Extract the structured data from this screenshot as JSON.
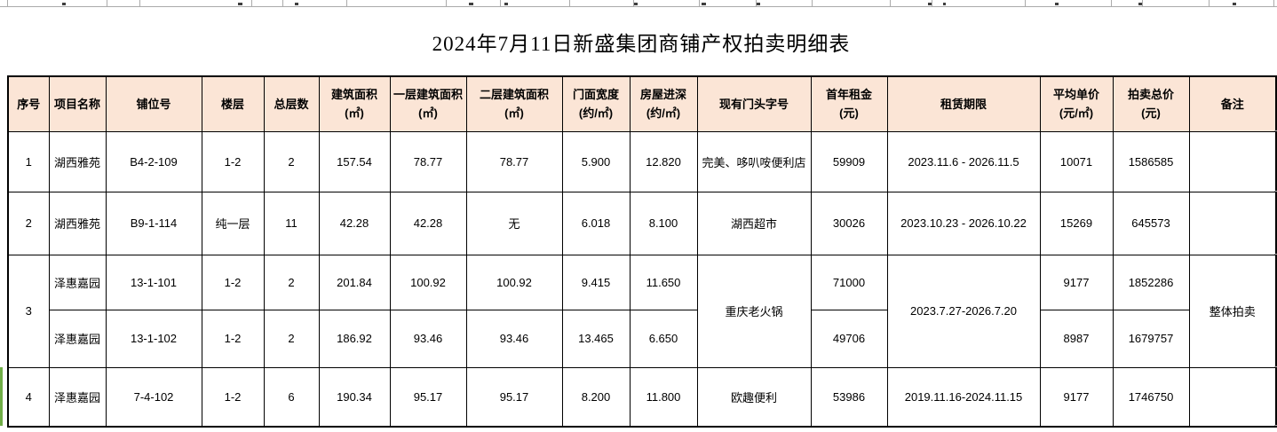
{
  "title": "2024年7月11日新盛集团商铺产权拍卖明细表",
  "colors": {
    "header_bg": "#FBE5D6",
    "border": "#000000",
    "grid_gray": "#ABABAB",
    "green_bar": "#70AD47"
  },
  "table": {
    "columns": [
      {
        "l1": "序号",
        "l2": ""
      },
      {
        "l1": "项目名称",
        "l2": ""
      },
      {
        "l1": "铺位号",
        "l2": ""
      },
      {
        "l1": "楼层",
        "l2": ""
      },
      {
        "l1": "总层数",
        "l2": ""
      },
      {
        "l1": "建筑面积",
        "l2": "(㎡)"
      },
      {
        "l1": "一层建筑面积",
        "l2": "(㎡)"
      },
      {
        "l1": "二层建筑面积",
        "l2": "(㎡)"
      },
      {
        "l1": "门面宽度",
        "l2": "(约/㎡)"
      },
      {
        "l1": "房屋进深",
        "l2": "(约/㎡)"
      },
      {
        "l1": "现有门头字号",
        "l2": ""
      },
      {
        "l1": "首年租金",
        "l2": "(元)"
      },
      {
        "l1": "租赁期限",
        "l2": ""
      },
      {
        "l1": "平均单价",
        "l2": "(元/㎡)"
      },
      {
        "l1": "拍卖总价",
        "l2": "(元)"
      },
      {
        "l1": "备注",
        "l2": ""
      }
    ],
    "rows": [
      {
        "no": "1",
        "project": "湖西雅苑",
        "unit": "B4-2-109",
        "floor": "1-2",
        "floors_total": "2",
        "area": "157.54",
        "area_f1": "78.77",
        "area_f2": "78.77",
        "width": "5.900",
        "depth": "12.820",
        "tenant": "完美、哆叭咹便利店",
        "rent": "59909",
        "term": "2023.11.6 - 2026.11.5",
        "avg": "10071",
        "total": "1586585",
        "note": ""
      },
      {
        "no": "2",
        "project": "湖西雅苑",
        "unit": "B9-1-114",
        "floor": "纯一层",
        "floors_total": "11",
        "area": "42.28",
        "area_f1": "42.28",
        "area_f2": "无",
        "width": "6.018",
        "depth": "8.100",
        "tenant": "湖西超市",
        "rent": "30026",
        "term": "2023.10.23 - 2026.10.22",
        "avg": "15269",
        "total": "645573",
        "note": ""
      },
      {
        "no": "3",
        "project": "泽惠嘉园",
        "unit": "13-1-101",
        "floor": "1-2",
        "floors_total": "2",
        "area": "201.84",
        "area_f1": "100.92",
        "area_f2": "100.92",
        "width": "9.415",
        "depth": "11.650",
        "tenant": "重庆老火锅",
        "rent": "71000",
        "term": "2023.7.27-2026.7.20",
        "avg": "9177",
        "total": "1852286",
        "note": "整体拍卖"
      },
      {
        "project": "泽惠嘉园",
        "unit": "13-1-102",
        "floor": "1-2",
        "floors_total": "2",
        "area": "186.92",
        "area_f1": "93.46",
        "area_f2": "93.46",
        "width": "13.465",
        "depth": "6.650",
        "rent": "49706",
        "avg": "8987",
        "total": "1679757"
      },
      {
        "no": "4",
        "project": "泽惠嘉园",
        "unit": "7-4-102",
        "floor": "1-2",
        "floors_total": "6",
        "area": "190.34",
        "area_f1": "95.17",
        "area_f2": "95.17",
        "width": "8.200",
        "depth": "11.800",
        "tenant": "欧趣便利",
        "rent": "53986",
        "term": "2019.11.16-2024.11.15",
        "avg": "9177",
        "total": "1746750",
        "note": ""
      }
    ]
  }
}
